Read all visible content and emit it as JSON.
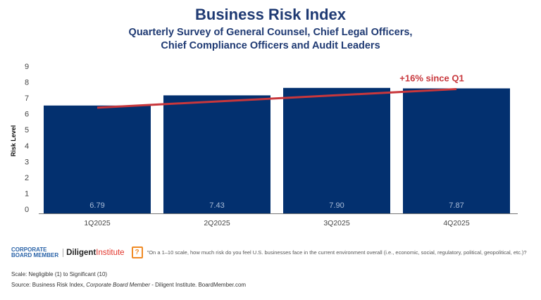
{
  "title": "Business Risk Index",
  "subtitle_line1": "Quarterly Survey of General Counsel, Chief Legal Officers,",
  "subtitle_line2": "Chief Compliance Officers and Audit Leaders",
  "chart_data": {
    "type": "bar",
    "categories": [
      "1Q2025",
      "2Q2025",
      "3Q2025",
      "4Q2025"
    ],
    "values": [
      6.79,
      7.43,
      7.9,
      7.87
    ],
    "data_labels": [
      "6.79",
      "7.43",
      "7.90",
      "7.87"
    ],
    "ylabel": "Risk Level",
    "ylim": [
      0,
      9
    ],
    "yticks": [
      "0",
      "1",
      "2",
      "3",
      "4",
      "5",
      "6",
      "7",
      "8",
      "9"
    ],
    "grid": false,
    "bar_color": "#03306f",
    "trendline": {
      "from_category": "1Q2025",
      "to_category": "4Q2025",
      "from_value": 6.79,
      "to_value": 7.87,
      "color": "#c8373c",
      "label": "+16% since Q1"
    }
  },
  "footer": {
    "logo1_line1": "CORPORATE",
    "logo1_line2": "BOARD MEMBER",
    "logo2_a": "Diligent",
    "logo2_b": "Institute",
    "question_icon": "question-speech-icon",
    "question": "\"On a 1–10 scale, how much risk do you feel U.S. businesses face in the current environment overall (i.e., economic, social, regulatory, political, geopolitical, etc.)?",
    "scale": "Scale: Negligible (1) to Significant (10)",
    "source_a": "Source: Business Risk Index, ",
    "source_b": "Corporate Board Member",
    "source_c": " - Diligent Institute. BoardMember.com"
  }
}
